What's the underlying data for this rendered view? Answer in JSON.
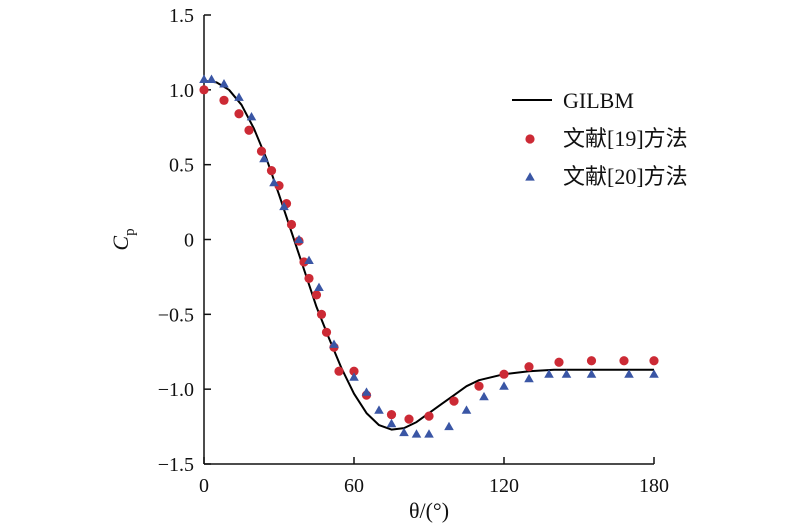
{
  "chart_data": {
    "type": "line",
    "xlabel": "θ/(°)",
    "ylabel": "C",
    "ylabel_subscript": "p",
    "xlim": [
      0,
      180
    ],
    "ylim": [
      -1.5,
      1.5
    ],
    "x_ticks": [
      0,
      60,
      120,
      180
    ],
    "x_tick_labels": [
      "0",
      "60",
      "120",
      "180"
    ],
    "y_ticks": [
      1.5,
      1.0,
      0.5,
      0,
      -0.5,
      -1.0,
      -1.5
    ],
    "y_tick_labels": [
      "1.5",
      "1.0",
      "0.5",
      "0",
      "−0.5",
      "−1.0",
      "−1.5"
    ],
    "grid": false,
    "legend_position": "top-right",
    "series": [
      {
        "name": "GILBM",
        "kind": "line",
        "color": "#000000",
        "x": [
          0,
          5,
          10,
          15,
          20,
          25,
          30,
          35,
          40,
          45,
          50,
          55,
          60,
          65,
          70,
          75,
          80,
          85,
          90,
          95,
          100,
          105,
          110,
          120,
          130,
          140,
          150,
          160,
          170,
          180
        ],
        "y": [
          1.06,
          1.05,
          1.0,
          0.9,
          0.74,
          0.54,
          0.3,
          0.05,
          -0.2,
          -0.45,
          -0.66,
          -0.86,
          -1.03,
          -1.16,
          -1.24,
          -1.27,
          -1.26,
          -1.22,
          -1.16,
          -1.1,
          -1.04,
          -0.98,
          -0.94,
          -0.9,
          -0.88,
          -0.87,
          -0.87,
          -0.87,
          -0.87,
          -0.87
        ]
      },
      {
        "name": "文献[19]方法",
        "kind": "scatter",
        "marker": "circle",
        "color": "#cc2a35",
        "x": [
          0,
          8,
          14,
          18,
          23,
          27,
          30,
          33,
          35,
          38,
          40,
          42,
          45,
          47,
          49,
          52,
          54,
          60,
          65,
          75,
          82,
          90,
          100,
          110,
          120,
          130,
          142,
          155,
          168,
          180
        ],
        "y": [
          1.0,
          0.93,
          0.84,
          0.73,
          0.59,
          0.46,
          0.36,
          0.24,
          0.1,
          -0.01,
          -0.15,
          -0.26,
          -0.37,
          -0.5,
          -0.62,
          -0.72,
          -0.88,
          -0.88,
          -1.04,
          -1.17,
          -1.2,
          -1.18,
          -1.08,
          -0.98,
          -0.9,
          -0.85,
          -0.82,
          -0.81,
          -0.81,
          -0.81
        ]
      },
      {
        "name": "文献[20]方法",
        "kind": "scatter",
        "marker": "triangle",
        "color": "#3a56a5",
        "x": [
          0,
          3,
          8,
          14,
          19,
          24,
          28,
          32,
          38,
          42,
          46,
          52,
          60,
          65,
          70,
          75,
          80,
          85,
          90,
          98,
          105,
          112,
          120,
          130,
          138,
          145,
          155,
          170,
          180
        ],
        "y": [
          1.07,
          1.07,
          1.04,
          0.95,
          0.82,
          0.54,
          0.38,
          0.22,
          0.0,
          -0.14,
          -0.32,
          -0.7,
          -0.92,
          -1.02,
          -1.14,
          -1.23,
          -1.29,
          -1.3,
          -1.3,
          -1.25,
          -1.14,
          -1.05,
          -0.98,
          -0.93,
          -0.9,
          -0.9,
          -0.9,
          -0.9,
          -0.9
        ]
      }
    ]
  }
}
